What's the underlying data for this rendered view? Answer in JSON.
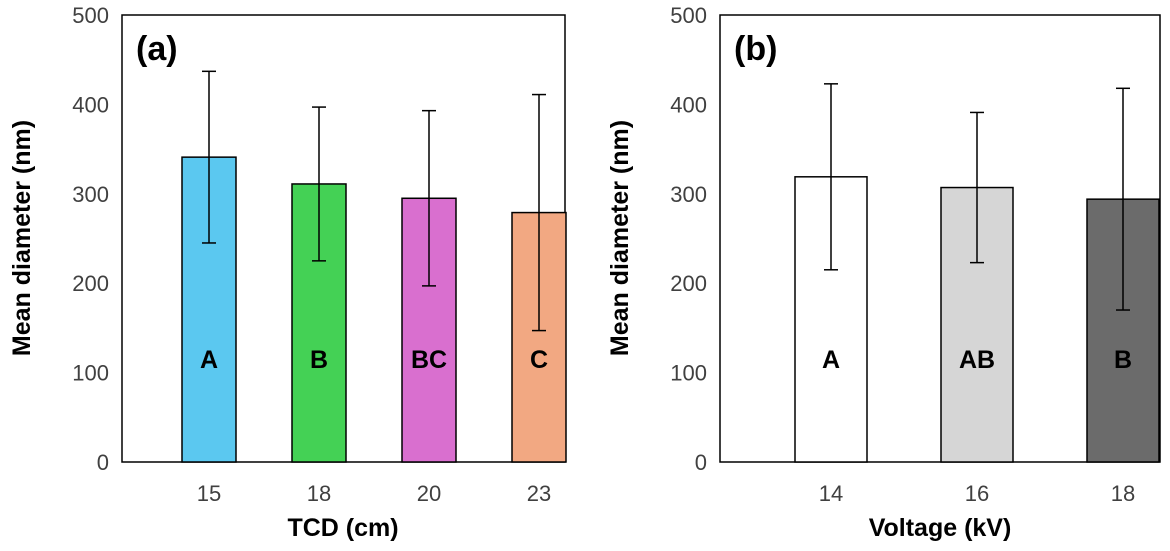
{
  "chart_data": [
    {
      "type": "bar",
      "panel_label": "(a)",
      "xlabel": "TCD (cm)",
      "ylabel": "Mean diameter (nm)",
      "ylim": [
        0,
        500
      ],
      "yticks": [
        0,
        100,
        200,
        300,
        400,
        500
      ],
      "categories": [
        "15",
        "18",
        "20",
        "23"
      ],
      "values": [
        341,
        311,
        295,
        279
      ],
      "error": [
        96,
        86,
        98,
        132
      ],
      "letters": [
        "A",
        "B",
        "BC",
        "C"
      ],
      "colors": [
        "#5bc8f0",
        "#44d155",
        "#d96fcf",
        "#f2a882"
      ]
    },
    {
      "type": "bar",
      "panel_label": "(b)",
      "xlabel": "Voltage (kV)",
      "ylabel": "Mean diameter (nm)",
      "ylim": [
        0,
        500
      ],
      "yticks": [
        0,
        100,
        200,
        300,
        400,
        500
      ],
      "categories": [
        "14",
        "16",
        "18"
      ],
      "values": [
        319,
        307,
        294
      ],
      "error": [
        104,
        84,
        124
      ],
      "letters": [
        "A",
        "AB",
        "B"
      ],
      "colors": [
        "#ffffff",
        "#d6d6d6",
        "#6b6b6b"
      ]
    }
  ]
}
